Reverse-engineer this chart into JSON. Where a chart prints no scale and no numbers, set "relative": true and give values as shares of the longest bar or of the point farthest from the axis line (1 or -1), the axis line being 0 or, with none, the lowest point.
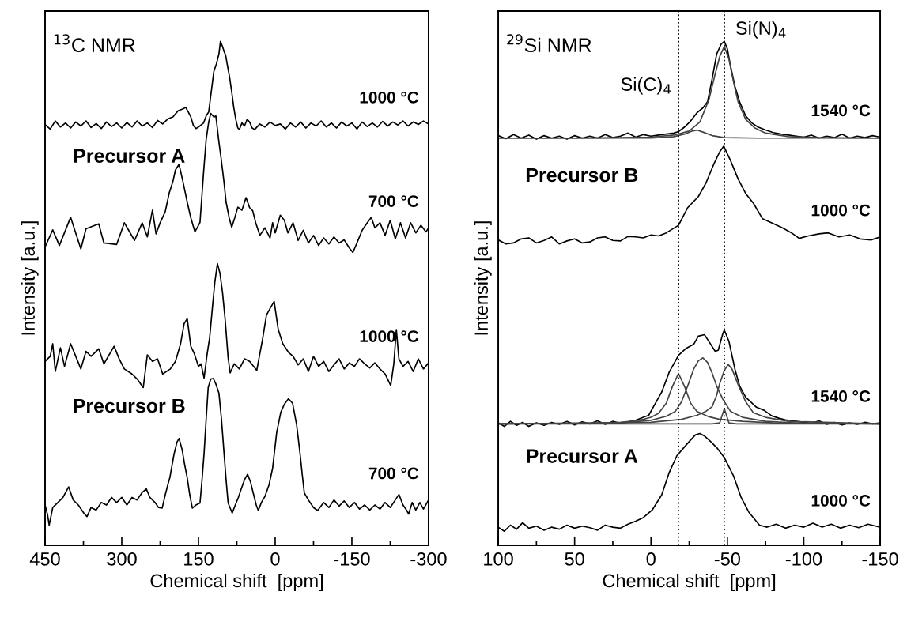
{
  "chart_data": [
    {
      "type": "line",
      "relative": true,
      "title": "$^{13}$C NMR",
      "xlabel": "Chemical shift  [ppm]",
      "ylabel": "Intensity [a.u.]",
      "xlim": [
        450,
        -300
      ],
      "xticks": [
        450,
        300,
        150,
        0,
        -150,
        -300
      ],
      "tick_labels": "x",
      "annotations": [
        "Precursor A",
        "Precursor B"
      ],
      "series": [
        {
          "name": "1000 °C",
          "color": "#000000",
          "x": [
            450,
            440,
            430,
            420,
            410,
            400,
            390,
            380,
            370,
            360,
            350,
            340,
            330,
            320,
            310,
            300,
            290,
            280,
            270,
            260,
            250,
            240,
            230,
            220,
            210,
            200,
            190,
            180,
            175,
            170,
            165,
            160,
            155,
            150,
            140,
            135,
            130,
            125,
            120,
            115,
            110,
            107,
            103,
            100,
            97,
            93,
            89,
            85,
            81,
            77,
            73,
            70,
            65,
            60,
            55,
            50,
            45,
            40,
            30,
            20,
            10,
            0,
            -10,
            -20,
            -30,
            -40,
            -50,
            -60,
            -70,
            -80,
            -90,
            -100,
            -110,
            -120,
            -130,
            -140,
            -150,
            -160,
            -170,
            -180,
            -190,
            -200,
            -210,
            -220,
            -230,
            -240,
            -250,
            -260,
            -270,
            -280,
            -290,
            -300
          ],
          "values": [
            0.835,
            0.826,
            0.842,
            0.83,
            0.838,
            0.828,
            0.84,
            0.832,
            0.842,
            0.829,
            0.837,
            0.827,
            0.84,
            0.831,
            0.838,
            0.828,
            0.839,
            0.83,
            0.842,
            0.832,
            0.838,
            0.829,
            0.843,
            0.836,
            0.846,
            0.85,
            0.862,
            0.866,
            0.869,
            0.86,
            0.85,
            0.833,
            0.827,
            0.83,
            0.838,
            0.852,
            0.86,
            0.9,
            0.94,
            0.955,
            0.975,
            1.0,
            0.99,
            0.98,
            0.973,
            0.95,
            0.928,
            0.9,
            0.869,
            0.845,
            0.828,
            0.825,
            0.838,
            0.832,
            0.845,
            0.84,
            0.828,
            0.825,
            0.836,
            0.83,
            0.84,
            0.833,
            0.836,
            0.826,
            0.838,
            0.83,
            0.84,
            0.828,
            0.838,
            0.832,
            0.842,
            0.83,
            0.838,
            0.828,
            0.84,
            0.832,
            0.838,
            0.826,
            0.84,
            0.831,
            0.838,
            0.83,
            0.841,
            0.832,
            0.84,
            0.834,
            0.842,
            0.832,
            0.84,
            0.835,
            0.842,
            0.836
          ]
        },
        {
          "name": "700 °C",
          "color": "#000000",
          "x": [
            450,
            435,
            422,
            400,
            380,
            370,
            345,
            335,
            310,
            295,
            275,
            260,
            250,
            240,
            233,
            225,
            215,
            207,
            200,
            195,
            188,
            180,
            172,
            165,
            157,
            150,
            147,
            140,
            135,
            130,
            126,
            120,
            116,
            110,
            106,
            100,
            96,
            90,
            85,
            79,
            73,
            65,
            57,
            50,
            44,
            38,
            30,
            20,
            10,
            5,
            0,
            -10,
            -18,
            -25,
            -35,
            -45,
            -55,
            -65,
            -75,
            -85,
            -95,
            -105,
            -115,
            -125,
            -135,
            -145,
            -152,
            -160,
            -170,
            -180,
            -188,
            -195,
            -205,
            -215,
            -225,
            -235,
            -245,
            -255,
            -265,
            -275,
            -285,
            -295,
            -300
          ],
          "values": [
            0.592,
            0.626,
            0.595,
            0.651,
            0.588,
            0.628,
            0.638,
            0.6,
            0.597,
            0.64,
            0.605,
            0.64,
            0.612,
            0.665,
            0.618,
            0.64,
            0.662,
            0.7,
            0.722,
            0.745,
            0.756,
            0.72,
            0.681,
            0.65,
            0.622,
            0.635,
            0.641,
            0.74,
            0.805,
            0.84,
            0.857,
            0.85,
            0.852,
            0.8,
            0.77,
            0.72,
            0.681,
            0.65,
            0.631,
            0.65,
            0.671,
            0.665,
            0.69,
            0.67,
            0.664,
            0.64,
            0.615,
            0.63,
            0.61,
            0.64,
            0.62,
            0.655,
            0.645,
            0.62,
            0.64,
            0.605,
            0.625,
            0.6,
            0.615,
            0.595,
            0.61,
            0.598,
            0.612,
            0.6,
            0.606,
            0.59,
            0.581,
            0.6,
            0.625,
            0.64,
            0.651,
            0.63,
            0.64,
            0.615,
            0.645,
            0.608,
            0.64,
            0.61,
            0.64,
            0.62,
            0.635,
            0.622,
            0.63
          ]
        },
        {
          "name": "1000 °C",
          "color": "#000000",
          "x": [
            450,
            440,
            435,
            430,
            420,
            412,
            400,
            390,
            380,
            370,
            360,
            345,
            335,
            315,
            305,
            295,
            280,
            270,
            258,
            250,
            240,
            230,
            220,
            205,
            195,
            185,
            178,
            172,
            165,
            158,
            150,
            145,
            139,
            133,
            128,
            122,
            118,
            113,
            108,
            103,
            98,
            92,
            88,
            80,
            70,
            60,
            50,
            42,
            36,
            30,
            25,
            17,
            10,
            2,
            -6,
            -15,
            -26,
            -35,
            -45,
            -55,
            -65,
            -75,
            -85,
            -95,
            -105,
            -115,
            -125,
            -135,
            -145,
            -155,
            -165,
            -175,
            -185,
            -195,
            -205,
            -215,
            -226,
            -232,
            -237,
            -242,
            -250,
            -260,
            -270,
            -280,
            -290,
            -300
          ],
          "values": [
            0.365,
            0.375,
            0.4,
            0.345,
            0.392,
            0.355,
            0.4,
            0.375,
            0.35,
            0.385,
            0.375,
            0.39,
            0.36,
            0.395,
            0.37,
            0.35,
            0.34,
            0.33,
            0.313,
            0.378,
            0.365,
            0.37,
            0.34,
            0.35,
            0.365,
            0.4,
            0.44,
            0.45,
            0.395,
            0.38,
            0.355,
            0.36,
            0.332,
            0.38,
            0.413,
            0.48,
            0.522,
            0.559,
            0.54,
            0.502,
            0.45,
            0.372,
            0.342,
            0.36,
            0.35,
            0.37,
            0.365,
            0.355,
            0.347,
            0.38,
            0.407,
            0.457,
            0.47,
            0.484,
            0.428,
            0.4,
            0.383,
            0.375,
            0.358,
            0.37,
            0.345,
            0.375,
            0.355,
            0.365,
            0.345,
            0.358,
            0.37,
            0.35,
            0.362,
            0.355,
            0.37,
            0.36,
            0.352,
            0.362,
            0.35,
            0.34,
            0.317,
            0.36,
            0.428,
            0.37,
            0.355,
            0.365,
            0.345,
            0.37,
            0.35,
            0.362
          ]
        },
        {
          "name": "700 °C",
          "color": "#000000",
          "x": [
            450,
            445,
            442,
            435,
            425,
            415,
            404,
            395,
            385,
            375,
            368,
            360,
            350,
            340,
            330,
            320,
            310,
            300,
            290,
            280,
            270,
            260,
            252,
            245,
            235,
            228,
            221,
            215,
            210,
            206,
            198,
            192,
            188,
            182,
            177,
            172,
            167,
            162,
            155,
            147,
            143,
            139,
            135,
            131,
            126,
            121,
            116,
            110,
            105,
            100,
            96,
            92,
            84,
            78,
            72,
            66,
            60,
            54,
            48,
            42,
            37,
            33,
            27,
            20,
            12,
            5,
            -3,
            -11,
            -18,
            -26,
            -34,
            -42,
            -49,
            -53,
            -57,
            -65,
            -75,
            -83,
            -95,
            -105,
            -115,
            -125,
            -135,
            -145,
            -155,
            -165,
            -175,
            -185,
            -195,
            -205,
            -215,
            -225,
            -235,
            -242,
            -250,
            -257,
            -261,
            -268,
            -275,
            -283,
            -290,
            -300
          ],
          "values": [
            0.08,
            0.06,
            0.04,
            0.075,
            0.085,
            0.095,
            0.116,
            0.09,
            0.08,
            0.065,
            0.057,
            0.075,
            0.07,
            0.085,
            0.08,
            0.095,
            0.085,
            0.095,
            0.08,
            0.095,
            0.09,
            0.105,
            0.112,
            0.095,
            0.085,
            0.075,
            0.074,
            0.1,
            0.12,
            0.134,
            0.18,
            0.205,
            0.212,
            0.19,
            0.16,
            0.134,
            0.1,
            0.074,
            0.08,
            0.084,
            0.13,
            0.183,
            0.25,
            0.313,
            0.33,
            0.331,
            0.32,
            0.302,
            0.25,
            0.183,
            0.13,
            0.084,
            0.064,
            0.08,
            0.095,
            0.113,
            0.13,
            0.141,
            0.125,
            0.1,
            0.08,
            0.069,
            0.085,
            0.097,
            0.12,
            0.153,
            0.224,
            0.264,
            0.28,
            0.291,
            0.282,
            0.239,
            0.179,
            0.14,
            0.104,
            0.09,
            0.075,
            0.069,
            0.085,
            0.075,
            0.09,
            0.078,
            0.088,
            0.075,
            0.085,
            0.072,
            0.08,
            0.07,
            0.08,
            0.072,
            0.085,
            0.075,
            0.09,
            0.101,
            0.08,
            0.07,
            0.062,
            0.085,
            0.07,
            0.085,
            0.072,
            0.09
          ]
        }
      ]
    },
    {
      "type": "line",
      "relative": true,
      "title": "$^{29}$Si NMR",
      "xlabel": "Chemical shift  [ppm]",
      "ylabel": "Intensity [a.u.]",
      "xlim": [
        100,
        -150
      ],
      "xticks": [
        100,
        50,
        0,
        -50,
        -100,
        -150
      ],
      "tick_labels": "x",
      "ref_lines": [
        {
          "axis": "x",
          "value": -18,
          "label": "Si(C)$_{4}$",
          "color": "#000000",
          "line_style": "dotted"
        },
        {
          "axis": "x",
          "value": -48,
          "label": "Si(N)$_{4}$",
          "color": "#000000",
          "line_style": "dotted"
        }
      ],
      "annotations": [
        "Precursor B",
        "Precursor A"
      ],
      "series": [
        {
          "name": "1540 °C",
          "color": "#000000",
          "x": [
            100,
            95,
            90,
            85,
            80,
            75,
            70,
            65,
            60,
            55,
            50,
            45,
            40,
            35,
            30,
            25,
            20,
            15,
            10,
            5,
            0,
            -5,
            -10,
            -15,
            -18,
            -22,
            -26,
            -30,
            -34,
            -37,
            -40,
            -43,
            -46,
            -48,
            -50,
            -52,
            -55,
            -58,
            -62,
            -66,
            -70,
            -75,
            -80,
            -85,
            -90,
            -95,
            -100,
            -105,
            -110,
            -115,
            -120,
            -125,
            -130,
            -135,
            -140,
            -145,
            -150
          ],
          "values": [
            0.813,
            0.807,
            0.815,
            0.808,
            0.814,
            0.806,
            0.813,
            0.808,
            0.812,
            0.806,
            0.813,
            0.808,
            0.812,
            0.808,
            0.815,
            0.809,
            0.812,
            0.818,
            0.81,
            0.815,
            0.812,
            0.814,
            0.816,
            0.818,
            0.821,
            0.83,
            0.842,
            0.858,
            0.868,
            0.88,
            0.925,
            0.975,
            0.995,
            1.0,
            0.985,
            0.952,
            0.91,
            0.88,
            0.852,
            0.838,
            0.83,
            0.824,
            0.819,
            0.816,
            0.814,
            0.812,
            0.81,
            0.814,
            0.808,
            0.812,
            0.809,
            0.816,
            0.808,
            0.812,
            0.809,
            0.813,
            0.81
          ]
        },
        {
          "color": "#444444",
          "x": [
            100,
            50,
            20,
            0,
            -15,
            -25,
            -32,
            -38,
            -42,
            -45,
            -48,
            -51,
            -54,
            -57,
            -62,
            -68,
            -75,
            -90,
            -110,
            -150
          ],
          "values": [
            0.808,
            0.808,
            0.809,
            0.81,
            0.814,
            0.822,
            0.84,
            0.885,
            0.935,
            0.97,
            0.99,
            0.965,
            0.92,
            0.88,
            0.845,
            0.828,
            0.818,
            0.811,
            0.809,
            0.808
          ]
        },
        {
          "color": "#444444",
          "x": [
            100,
            0,
            -15,
            -22,
            -27,
            -30,
            -34,
            -40,
            -48,
            -70,
            -150
          ],
          "values": [
            0.808,
            0.808,
            0.811,
            0.816,
            0.822,
            0.824,
            0.82,
            0.813,
            0.809,
            0.808,
            0.808
          ]
        },
        {
          "name": "1000 °C",
          "color": "#000000",
          "x": [
            100,
            95,
            90,
            85,
            80,
            75,
            70,
            65,
            60,
            55,
            50,
            45,
            40,
            35,
            30,
            25,
            20,
            15,
            10,
            5,
            0,
            -5,
            -10,
            -18,
            -24,
            -31,
            -36,
            -41.5,
            -45,
            -47.6,
            -52,
            -57,
            -62,
            -67,
            -73,
            -81,
            -86,
            -92,
            -97,
            -103,
            -110,
            -116,
            -123,
            -130,
            -137,
            -144,
            -150
          ],
          "values": [
            0.606,
            0.598,
            0.6,
            0.608,
            0.61,
            0.6,
            0.605,
            0.612,
            0.598,
            0.604,
            0.608,
            0.6,
            0.602,
            0.61,
            0.612,
            0.605,
            0.604,
            0.613,
            0.612,
            0.61,
            0.616,
            0.614,
            0.62,
            0.635,
            0.67,
            0.692,
            0.719,
            0.759,
            0.781,
            0.792,
            0.764,
            0.727,
            0.698,
            0.679,
            0.648,
            0.637,
            0.63,
            0.62,
            0.609,
            0.614,
            0.618,
            0.62,
            0.612,
            0.616,
            0.608,
            0.606,
            0.612
          ]
        },
        {
          "name": "1540 °C",
          "color": "#000000",
          "x": [
            100,
            96,
            92,
            88,
            84,
            80,
            75,
            70,
            65,
            60,
            55,
            50,
            45,
            40,
            35,
            30,
            25,
            20,
            15,
            10,
            5,
            1.5,
            -2,
            -7,
            -12,
            -18,
            -22.6,
            -28,
            -31,
            -35,
            -38,
            -42,
            -44,
            -47,
            -48,
            -51,
            -55,
            -58,
            -62,
            -69,
            -74,
            -79,
            -84,
            -88,
            -93,
            -98,
            -105,
            -110,
            -115,
            -120,
            -125,
            -130,
            -135,
            -140,
            -145,
            -150
          ],
          "values": [
            0.243,
            0.236,
            0.246,
            0.238,
            0.244,
            0.236,
            0.243,
            0.238,
            0.244,
            0.24,
            0.246,
            0.239,
            0.245,
            0.241,
            0.247,
            0.24,
            0.246,
            0.242,
            0.245,
            0.248,
            0.254,
            0.258,
            0.277,
            0.304,
            0.344,
            0.377,
            0.39,
            0.399,
            0.415,
            0.418,
            0.404,
            0.385,
            0.387,
            0.42,
            0.427,
            0.405,
            0.349,
            0.316,
            0.294,
            0.274,
            0.268,
            0.257,
            0.252,
            0.249,
            0.247,
            0.245,
            0.242,
            0.247,
            0.24,
            0.244,
            0.239,
            0.243,
            0.24,
            0.244,
            0.241,
            0.243
          ]
        },
        {
          "color": "#444444",
          "x": [
            100,
            40,
            20,
            10,
            5,
            0,
            -5,
            -10,
            -14,
            -18,
            -22,
            -26,
            -30,
            -38,
            -45,
            -60,
            -80,
            -150
          ],
          "values": [
            0.241,
            0.242,
            0.244,
            0.247,
            0.25,
            0.254,
            0.262,
            0.282,
            0.315,
            0.341,
            0.315,
            0.282,
            0.266,
            0.255,
            0.25,
            0.246,
            0.243,
            0.241
          ]
        },
        {
          "color": "#444444",
          "x": [
            100,
            20,
            0,
            -10,
            -16,
            -20,
            -24,
            -28,
            -31,
            -34,
            -37,
            -40,
            -43,
            -47,
            -52,
            -60,
            -75,
            -100,
            -150
          ],
          "values": [
            0.241,
            0.243,
            0.248,
            0.256,
            0.266,
            0.285,
            0.316,
            0.35,
            0.366,
            0.372,
            0.363,
            0.342,
            0.316,
            0.29,
            0.266,
            0.254,
            0.246,
            0.242,
            0.241
          ]
        },
        {
          "color": "#444444",
          "x": [
            100,
            0,
            -20,
            -30,
            -36,
            -40,
            -43,
            -45,
            -48,
            -50.5,
            -53,
            -57,
            -62,
            -67,
            -75,
            -90,
            -150
          ],
          "values": [
            0.241,
            0.244,
            0.25,
            0.258,
            0.266,
            0.275,
            0.298,
            0.321,
            0.347,
            0.359,
            0.35,
            0.319,
            0.285,
            0.263,
            0.254,
            0.246,
            0.241
          ]
        },
        {
          "color": "#444444",
          "x": [
            100,
            -40,
            -45,
            -47,
            -48,
            -49,
            -51,
            -56,
            -150
          ],
          "values": [
            0.241,
            0.241,
            0.243,
            0.262,
            0.271,
            0.262,
            0.243,
            0.241,
            0.241
          ]
        },
        {
          "name": "1000 °C",
          "color": "#000000",
          "x": [
            100,
            96,
            92,
            88,
            84,
            80,
            75,
            70,
            65,
            60,
            55,
            50,
            45,
            40,
            35,
            30,
            25,
            20,
            15,
            10,
            5,
            -1,
            -7,
            -12,
            -17,
            -23,
            -29,
            -32,
            -35,
            -39,
            -43,
            -48,
            -54,
            -59,
            -64,
            -71,
            -76,
            -82,
            -88,
            -94,
            -100,
            -106,
            -112,
            -118,
            -124,
            -130,
            -136,
            -142,
            -150
          ],
          "values": [
            0.036,
            0.028,
            0.04,
            0.032,
            0.045,
            0.034,
            0.038,
            0.03,
            0.036,
            0.032,
            0.04,
            0.034,
            0.038,
            0.035,
            0.03,
            0.04,
            0.036,
            0.034,
            0.042,
            0.048,
            0.055,
            0.071,
            0.1,
            0.145,
            0.178,
            0.199,
            0.219,
            0.222,
            0.217,
            0.206,
            0.194,
            0.174,
            0.138,
            0.095,
            0.066,
            0.04,
            0.036,
            0.042,
            0.034,
            0.04,
            0.036,
            0.044,
            0.036,
            0.042,
            0.034,
            0.04,
            0.035,
            0.042,
            0.036
          ]
        }
      ]
    }
  ]
}
